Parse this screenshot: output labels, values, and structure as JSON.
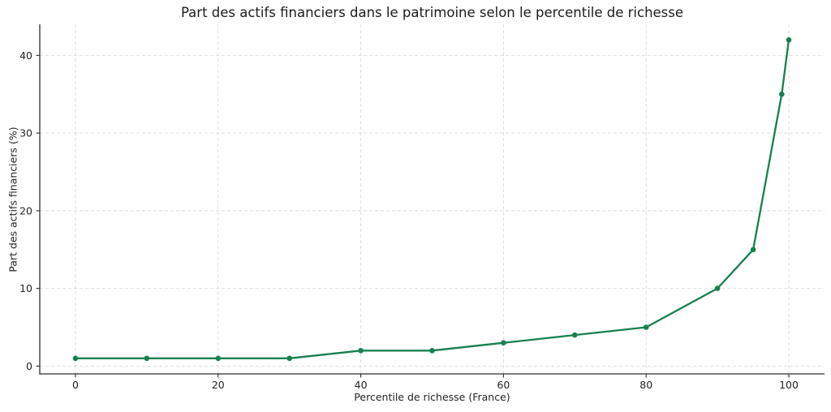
{
  "chart_data": {
    "type": "line",
    "title": "Part des actifs financiers dans le patrimoine selon le percentile de richesse",
    "xlabel": "Percentile de richesse (France)",
    "ylabel": "Part des actifs financiers (%)",
    "x": [
      0,
      10,
      20,
      30,
      40,
      50,
      60,
      70,
      80,
      90,
      95,
      99,
      100
    ],
    "y": [
      1,
      1,
      1,
      1,
      2,
      2,
      3,
      4,
      5,
      10,
      15,
      35,
      42
    ],
    "xticks": [
      0,
      20,
      40,
      60,
      80,
      100
    ],
    "yticks": [
      0,
      10,
      20,
      30,
      40
    ],
    "xlim": [
      -5,
      105
    ],
    "ylim": [
      -1,
      44
    ],
    "grid": true,
    "grid_style": "dashed",
    "legend": false,
    "line_color": "#17804e",
    "marker": "circle",
    "marker_radius": 3.3,
    "background_color": "#ffffff"
  }
}
